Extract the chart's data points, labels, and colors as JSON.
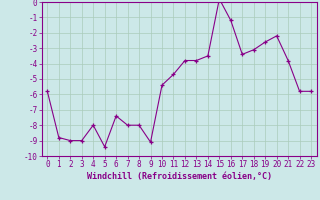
{
  "x": [
    0,
    1,
    2,
    3,
    4,
    5,
    6,
    7,
    8,
    9,
    10,
    11,
    12,
    13,
    14,
    15,
    16,
    17,
    18,
    19,
    20,
    21,
    22,
    23
  ],
  "y": [
    -5.8,
    -8.8,
    -9.0,
    -9.0,
    -8.0,
    -9.4,
    -7.4,
    -8.0,
    -8.0,
    -9.1,
    -5.4,
    -4.7,
    -3.8,
    -3.8,
    -3.5,
    0.2,
    -1.2,
    -3.4,
    -3.1,
    -2.6,
    -2.2,
    -3.8,
    -5.8,
    -5.8
  ],
  "line_color": "#880088",
  "marker": "+",
  "marker_size": 3,
  "xlabel": "Windchill (Refroidissement éolien,°C)",
  "xlabel_fontsize": 6,
  "bg_color": "#cce8e8",
  "grid_color": "#aaccbb",
  "xlim": [
    -0.5,
    23.5
  ],
  "ylim": [
    -10,
    0
  ],
  "yticks": [
    0,
    -1,
    -2,
    -3,
    -4,
    -5,
    -6,
    -7,
    -8,
    -9,
    -10
  ],
  "xticks": [
    0,
    1,
    2,
    3,
    4,
    5,
    6,
    7,
    8,
    9,
    10,
    11,
    12,
    13,
    14,
    15,
    16,
    17,
    18,
    19,
    20,
    21,
    22,
    23
  ],
  "tick_fontsize": 5.5
}
